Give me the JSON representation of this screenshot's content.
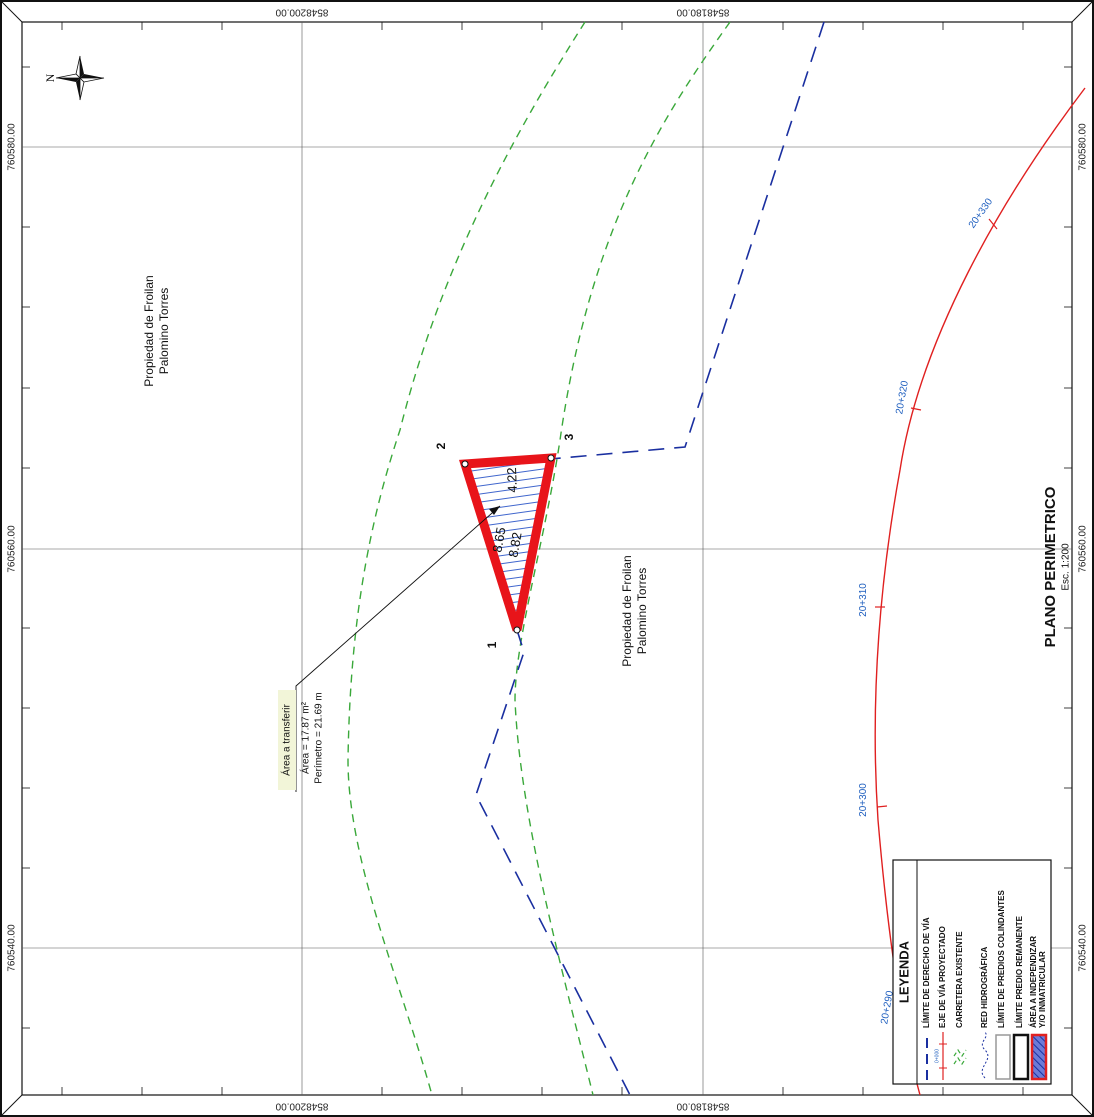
{
  "title": {
    "main": "PLANO PERIMETRICO",
    "scale": "Esc. 1:200"
  },
  "grid": {
    "easting_labels": [
      "8548200.00",
      "8548180.00"
    ],
    "northing_labels": [
      "760580.00",
      "760560.00",
      "760540.00"
    ]
  },
  "north_arrow": {
    "letter": "N"
  },
  "properties": [
    {
      "line1": "Propiedad de Froilan",
      "line2": "Palomino Torres"
    },
    {
      "line1": "Propiedad de Froilan",
      "line2": "Palomino Torres"
    }
  ],
  "parcel": {
    "vertices": [
      "1",
      "2",
      "3"
    ],
    "dimensions": [
      "4.22",
      "8.65",
      "8.82"
    ],
    "fill_color": "#e8141a"
  },
  "transfer_note": {
    "heading": "Área a transferir",
    "area": "Área = 17.87 m²",
    "perimeter": "Perímetro = 21.69 m"
  },
  "stations": [
    "20+290",
    "20+300",
    "20+310",
    "20+320",
    "20+330"
  ],
  "legend": {
    "title": "LEYENDA",
    "items": [
      {
        "label": "LÍMITE DE DERECHO DE VÍA",
        "symbol": "blue-dashed-line"
      },
      {
        "label": "EJE DE VÍA PROYECTADO",
        "symbol": "red-axis-line",
        "code": "0+000"
      },
      {
        "label": "CARRETERA EXISTENTE",
        "symbol": "green-dashed-line"
      },
      {
        "label": "RED HIDROGRÁFICA",
        "symbol": "blue-wave"
      },
      {
        "label": "LÍMITE DE PREDIOS COLINDANTES",
        "symbol": "gray-box"
      },
      {
        "label": "LÍMITE PREDIO REMANENTE",
        "symbol": "black-box"
      },
      {
        "label": "ÁREA A INDEPENDIZAR",
        "symbol": "red-hatched-box"
      },
      {
        "label": "Y/O INMATRICULAR",
        "symbol": "none"
      }
    ]
  },
  "colors": {
    "right_of_way": "#1a2fa0",
    "road_axis": "#e02020",
    "existing_road": "#3aa83a",
    "station_text": "#1f5fbf"
  }
}
